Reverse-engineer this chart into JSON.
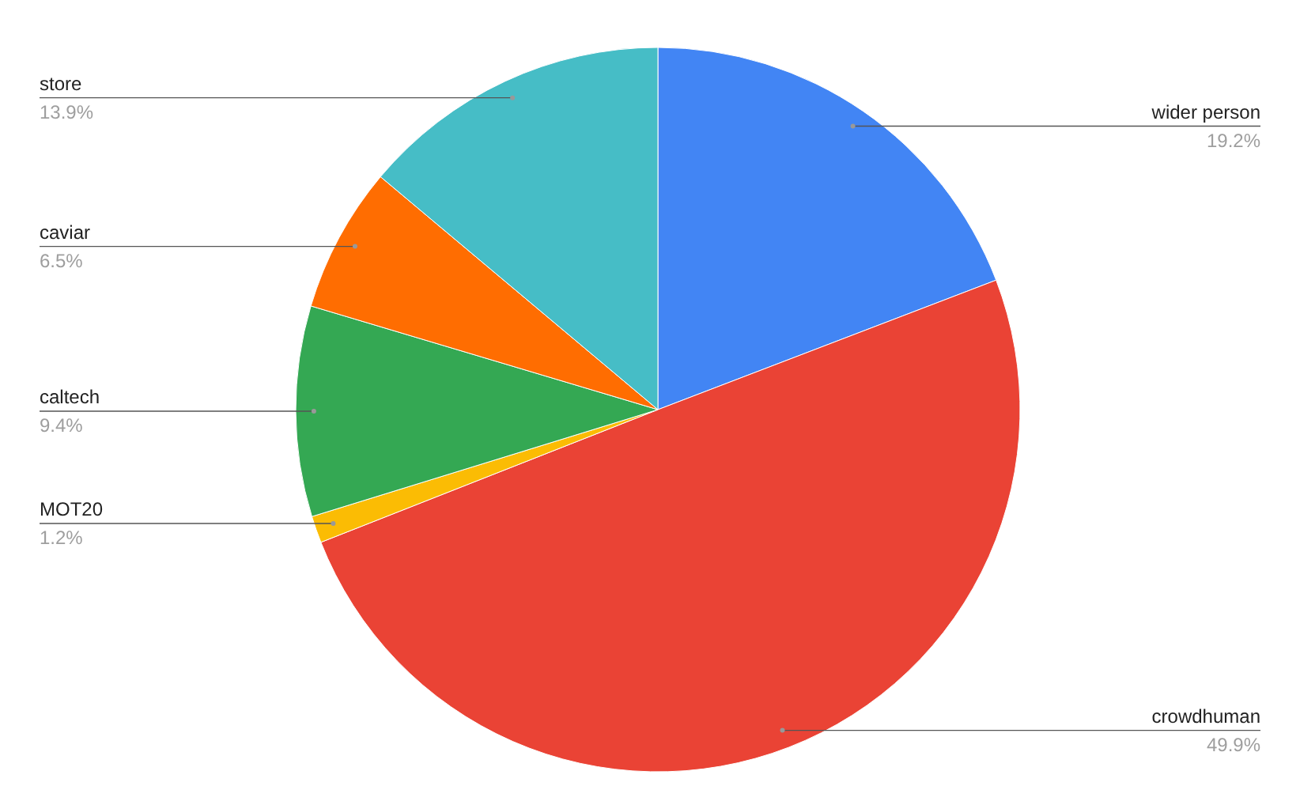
{
  "chart_data": {
    "type": "pie",
    "categories": [
      "wider person",
      "crowdhuman",
      "MOT20",
      "caltech",
      "caviar",
      "store"
    ],
    "values": [
      19.2,
      49.9,
      1.2,
      9.4,
      6.5,
      13.9
    ],
    "value_labels": [
      "19.2%",
      "49.9%",
      "1.2%",
      "9.4%",
      "6.5%",
      "13.9%"
    ],
    "colors": [
      "#4285f4",
      "#ea4335",
      "#fbbc04",
      "#34a853",
      "#ff6d01",
      "#46bdc6"
    ],
    "legend": false
  }
}
